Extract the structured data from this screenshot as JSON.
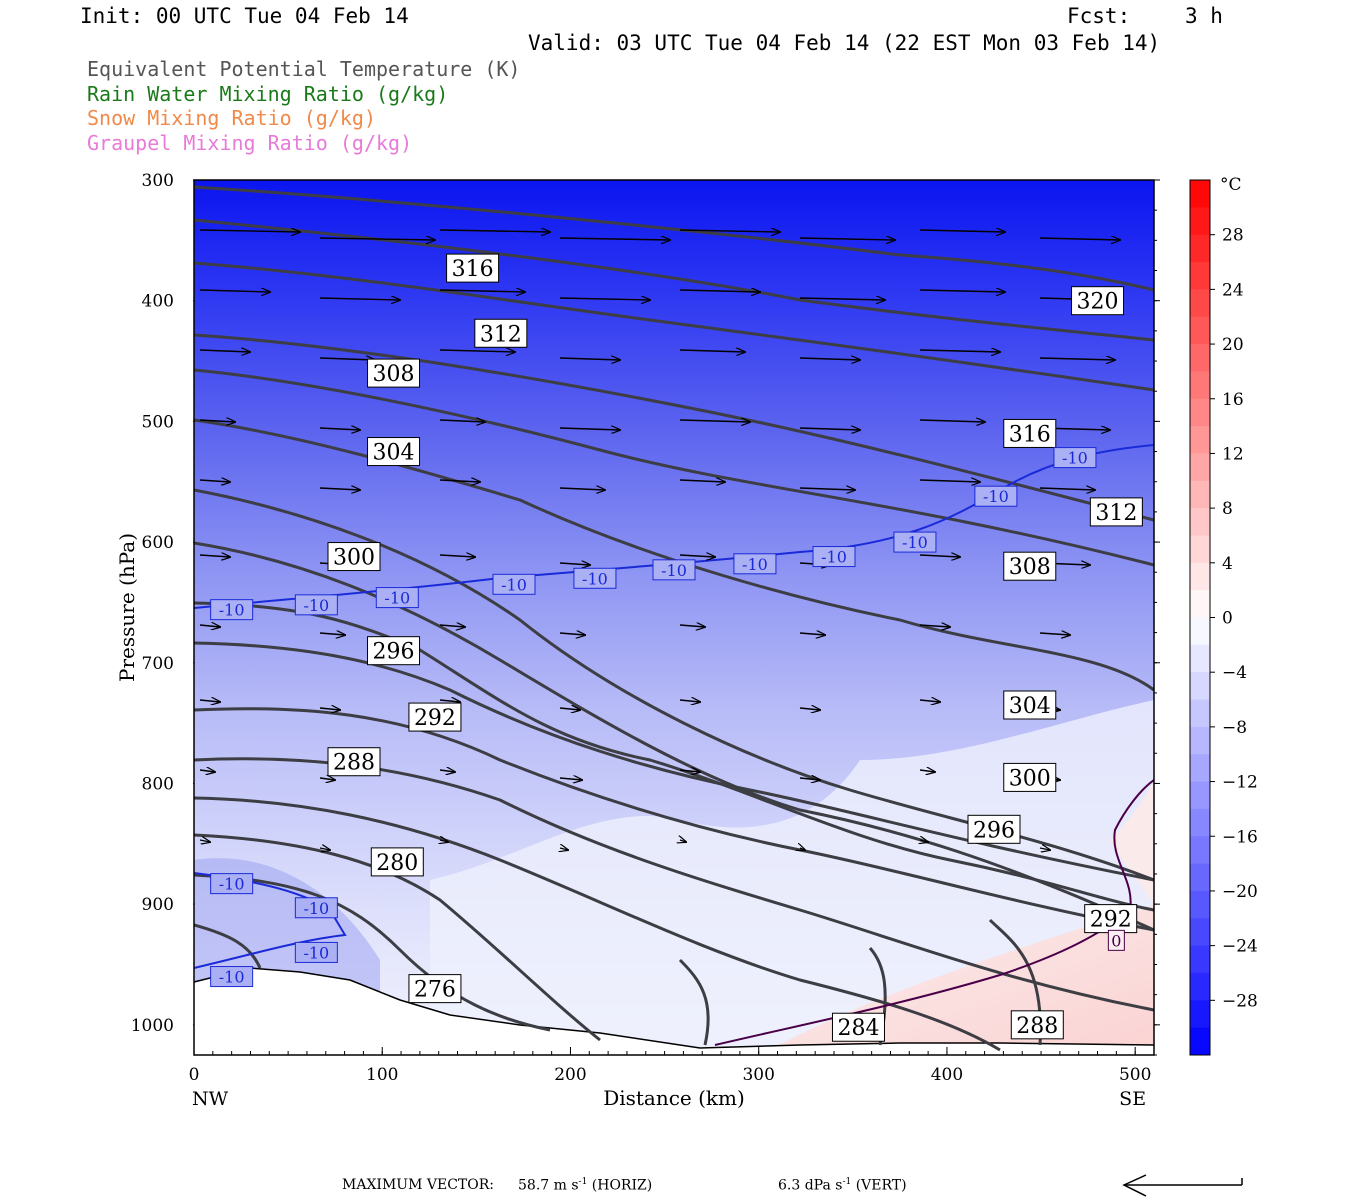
{
  "header": {
    "init": "Init: 00 UTC Tue 04 Feb 14",
    "fcst_label": "Fcst:",
    "fcst_value": "3 h",
    "valid": "Valid: 03 UTC Tue 04 Feb 14 (22 EST Mon 03 Feb 14)"
  },
  "fields": [
    {
      "label": "Equivalent Potential Temperature (K)",
      "color": "#555555"
    },
    {
      "label": "Rain Water Mixing Ratio (g/kg)",
      "color": "#1a7a1a"
    },
    {
      "label": "Snow Mixing Ratio (g/kg)",
      "color": "#f08a4b"
    },
    {
      "label": "Graupel Mixing Ratio (g/kg)",
      "color": "#e87ad8"
    }
  ],
  "chart_data": {
    "type": "contour",
    "xlabel": "Distance (km)",
    "ylabel": "Pressure (hPa)",
    "xlim": [
      0,
      510
    ],
    "ylim": [
      1025,
      300
    ],
    "x_ticks": [
      "0",
      "100",
      "200",
      "300",
      "400",
      "500"
    ],
    "y_ticks": [
      "300",
      "400",
      "500",
      "600",
      "700",
      "800",
      "900",
      "1000"
    ],
    "x_end_labels": {
      "left": "NW",
      "right": "SE"
    },
    "theta_e_labels": [
      {
        "value": "316",
        "x": 148,
        "p": 373
      },
      {
        "value": "320",
        "x": 480,
        "p": 400
      },
      {
        "value": "312",
        "x": 163,
        "p": 427
      },
      {
        "value": "308",
        "x": 106,
        "p": 460
      },
      {
        "value": "316",
        "x": 444,
        "p": 510
      },
      {
        "value": "304",
        "x": 106,
        "p": 525
      },
      {
        "value": "312",
        "x": 490,
        "p": 575
      },
      {
        "value": "300",
        "x": 85,
        "p": 612
      },
      {
        "value": "308",
        "x": 444,
        "p": 620
      },
      {
        "value": "296",
        "x": 106,
        "p": 690
      },
      {
        "value": "304",
        "x": 444,
        "p": 735
      },
      {
        "value": "292",
        "x": 128,
        "p": 745
      },
      {
        "value": "288",
        "x": 85,
        "p": 782
      },
      {
        "value": "300",
        "x": 444,
        "p": 795
      },
      {
        "value": "296",
        "x": 425,
        "p": 838
      },
      {
        "value": "280",
        "x": 108,
        "p": 865
      },
      {
        "value": "292",
        "x": 487,
        "p": 912
      },
      {
        "value": "276",
        "x": 128,
        "p": 970
      },
      {
        "value": "284",
        "x": 353,
        "p": 1002
      },
      {
        "value": "288",
        "x": 448,
        "p": 1000
      }
    ],
    "isotherm_labels": [
      {
        "value": "-10",
        "x": 20,
        "p": 656
      },
      {
        "value": "-10",
        "x": 65,
        "p": 652
      },
      {
        "value": "-10",
        "x": 108,
        "p": 646
      },
      {
        "value": "-10",
        "x": 170,
        "p": 635
      },
      {
        "value": "-10",
        "x": 213,
        "p": 630
      },
      {
        "value": "-10",
        "x": 255,
        "p": 623
      },
      {
        "value": "-10",
        "x": 298,
        "p": 618
      },
      {
        "value": "-10",
        "x": 340,
        "p": 612
      },
      {
        "value": "-10",
        "x": 383,
        "p": 600
      },
      {
        "value": "-10",
        "x": 426,
        "p": 562
      },
      {
        "value": "-10",
        "x": 468,
        "p": 530
      },
      {
        "value": "-10",
        "x": 20,
        "p": 883
      },
      {
        "value": "-10",
        "x": 65,
        "p": 903
      },
      {
        "value": "-10",
        "x": 65,
        "p": 940
      },
      {
        "value": "-10",
        "x": 20,
        "p": 960
      },
      {
        "value": "0",
        "x": 490,
        "p": 930
      }
    ],
    "colorbar": {
      "unit": "°C",
      "labels": [
        "28",
        "24",
        "20",
        "16",
        "12",
        "8",
        "4",
        "0",
        "−4",
        "−8",
        "−12",
        "−16",
        "−20",
        "−24",
        "−28"
      ],
      "range": [
        -32,
        32
      ],
      "step": 2,
      "cold_color": "#0000ff",
      "warm_color": "#ff0000"
    }
  },
  "footer": {
    "max_vector_label": "MAXIMUM VECTOR:",
    "horiz_value": "58.7 m s",
    "horiz_exp": "-1",
    "horiz_tag": "(HORIZ)",
    "vert_value": "6.3 dPa s",
    "vert_exp": "-1",
    "vert_tag": "(VERT)"
  }
}
